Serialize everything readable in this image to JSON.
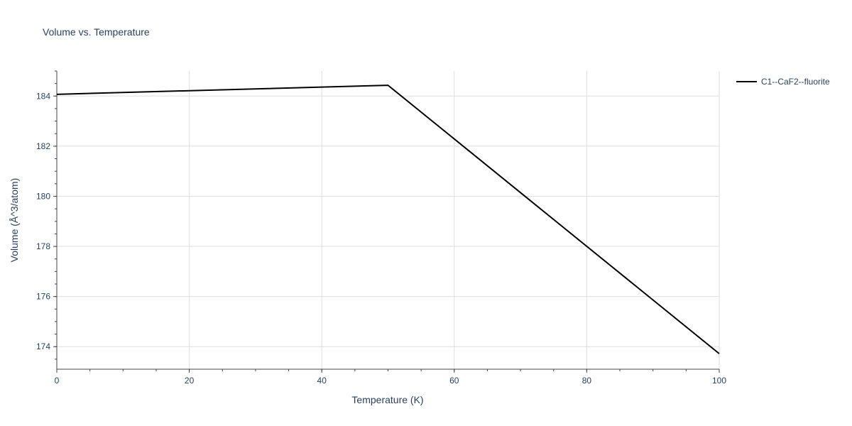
{
  "chart_data": {
    "type": "line",
    "title": "Volume vs. Temperature",
    "xlabel": "Temperature (K)",
    "ylabel": "Volume (Å^3/atom)",
    "xlim": [
      0,
      100
    ],
    "ylim": [
      173.1,
      185.0
    ],
    "x_ticks": [
      0,
      20,
      40,
      60,
      80,
      100
    ],
    "y_ticks": [
      174,
      176,
      178,
      180,
      182,
      184
    ],
    "x_minor_step": 5,
    "y_minor_step": 0.5,
    "grid": true,
    "legend_position": "top-right",
    "series": [
      {
        "name": "C1--CaF2--fluorite",
        "color": "#000000",
        "x": [
          0,
          50,
          100
        ],
        "y": [
          184.07,
          184.43,
          173.72
        ]
      }
    ]
  }
}
